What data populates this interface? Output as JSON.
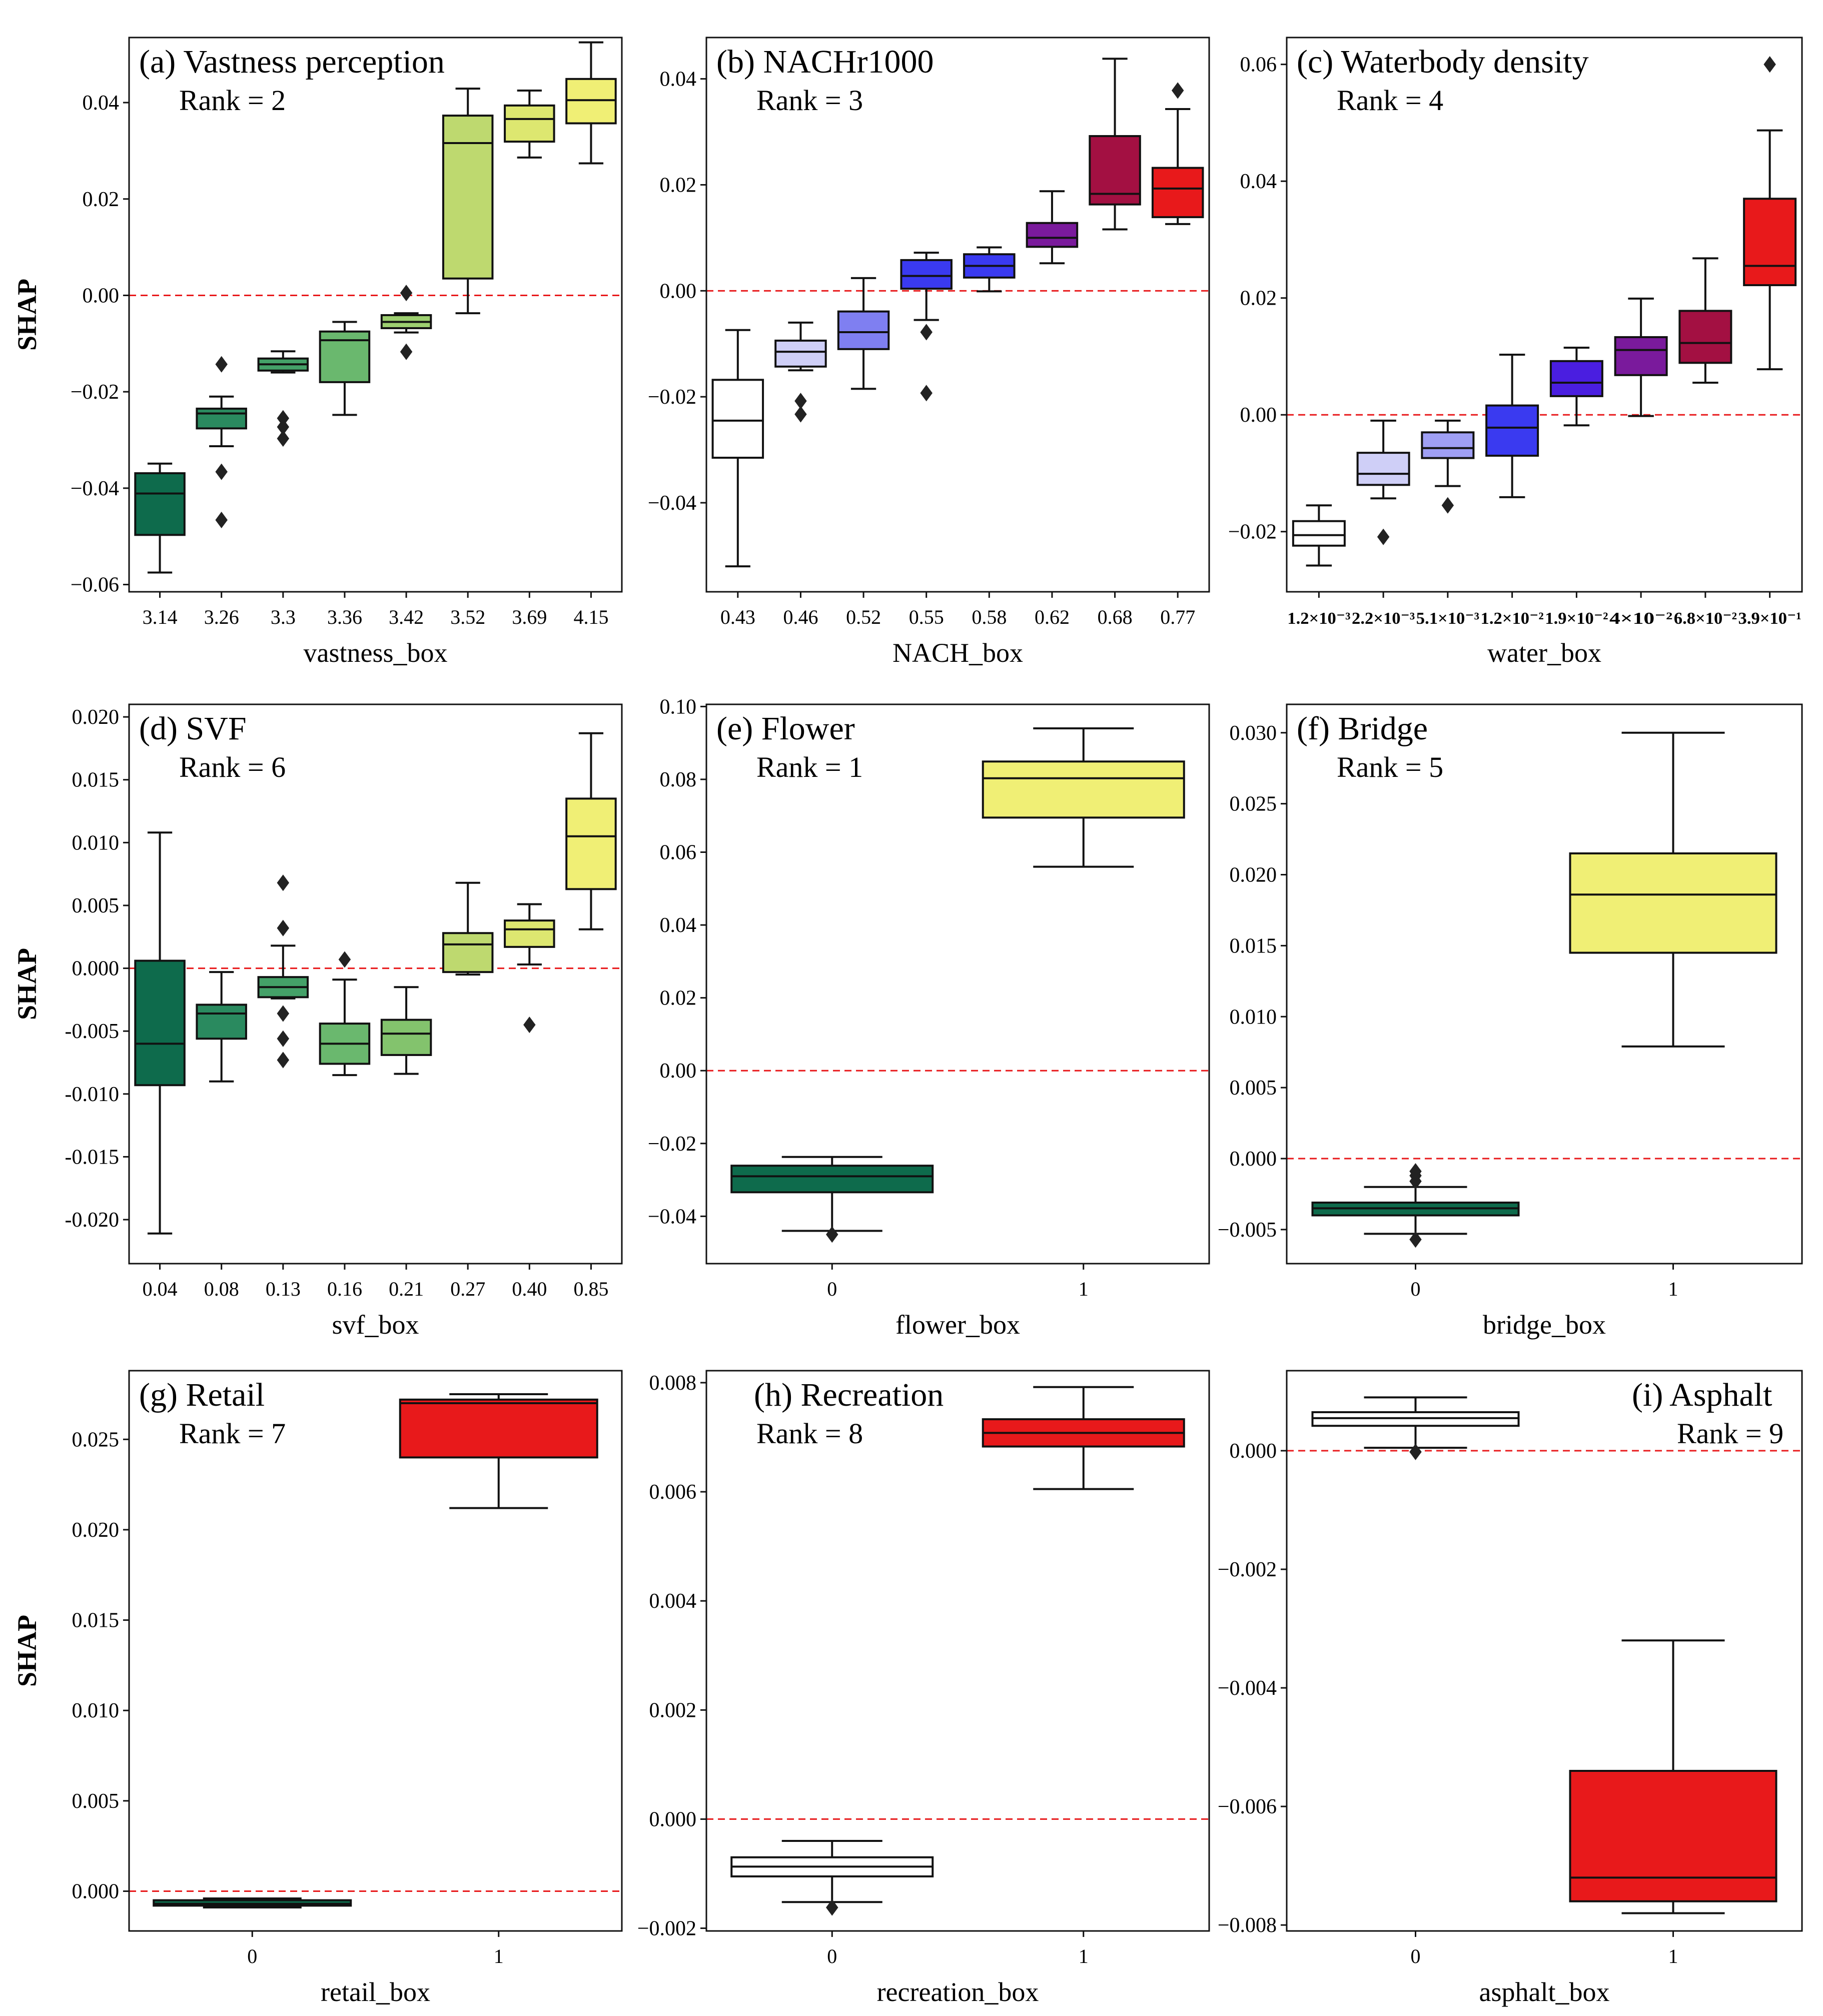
{
  "chart_data": [
    {
      "type": "box",
      "title": "(a) Vastness perception",
      "rank_text": "Rank = 2",
      "xlabel": "vastness_box",
      "ylabel": "SHAP",
      "ylim": [
        -0.0615,
        0.0535
      ],
      "yticks": [
        -0.06,
        -0.04,
        -0.02,
        0.0,
        0.02,
        0.04
      ],
      "ytick_labels": [
        "−0.06",
        "−0.04",
        "−0.02",
        "0.00",
        "0.02",
        "0.04"
      ],
      "reference_line": 0,
      "categories": [
        "3.14",
        "3.26",
        "3.3",
        "3.36",
        "3.42",
        "3.52",
        "3.69",
        "4.15"
      ],
      "boxes": [
        {
          "color": "#0e6b4c",
          "whislo": -0.0575,
          "q1": -0.0497,
          "med": -0.0411,
          "q3": -0.0369,
          "whishi": -0.0349,
          "fliers": []
        },
        {
          "color": "#2a8a5f",
          "whislo": -0.0313,
          "q1": -0.0276,
          "med": -0.0245,
          "q3": -0.0235,
          "whishi": -0.021,
          "fliers": [
            -0.0143,
            -0.0366,
            -0.0466
          ]
        },
        {
          "color": "#44a168",
          "whislo": -0.016,
          "q1": -0.0156,
          "med": -0.0143,
          "q3": -0.0131,
          "whishi": -0.0116,
          "fliers": [
            -0.0255,
            -0.0273,
            -0.0297
          ]
        },
        {
          "color": "#6ab86e",
          "whislo": -0.0248,
          "q1": -0.018,
          "med": -0.0093,
          "q3": -0.0075,
          "whishi": -0.0055,
          "fliers": []
        },
        {
          "color": "#9dcf70",
          "whislo": -0.0077,
          "q1": -0.0068,
          "med": -0.0055,
          "q3": -0.0041,
          "whishi": -0.0037,
          "fliers": [
            0.0005,
            -0.0117
          ]
        },
        {
          "color": "#bed96f",
          "whislo": -0.0037,
          "q1": 0.0035,
          "med": 0.0316,
          "q3": 0.0373,
          "whishi": 0.0429,
          "fliers": []
        },
        {
          "color": "#dde770",
          "whislo": 0.0286,
          "q1": 0.0319,
          "med": 0.0366,
          "q3": 0.0394,
          "whishi": 0.0425,
          "fliers": []
        },
        {
          "color": "#f0ef75",
          "whislo": 0.0274,
          "q1": 0.0357,
          "med": 0.0405,
          "q3": 0.0449,
          "whishi": 0.0525,
          "fliers": []
        }
      ]
    },
    {
      "type": "box",
      "title": "(b) NACHr1000",
      "rank_text": "Rank = 3",
      "xlabel": "NACH_box",
      "ylabel": "",
      "ylim": [
        -0.0568,
        0.0478
      ],
      "yticks": [
        -0.04,
        -0.02,
        0.0,
        0.02,
        0.04
      ],
      "ytick_labels": [
        "−0.04",
        "−0.02",
        "0.00",
        "0.02",
        "0.04"
      ],
      "reference_line": 0,
      "categories": [
        "0.43",
        "0.46",
        "0.52",
        "0.55",
        "0.58",
        "0.62",
        "0.68",
        "0.77"
      ],
      "boxes": [
        {
          "color": "#ffffff",
          "whislo": -0.052,
          "q1": -0.0315,
          "med": -0.0245,
          "q3": -0.0168,
          "whishi": -0.0074,
          "fliers": []
        },
        {
          "color": "#cfcff7",
          "whislo": -0.015,
          "q1": -0.0143,
          "med": -0.0115,
          "q3": -0.0094,
          "whishi": -0.006,
          "fliers": [
            -0.0208,
            -0.0233
          ]
        },
        {
          "color": "#7f7ff1",
          "whislo": -0.0185,
          "q1": -0.011,
          "med": -0.0078,
          "q3": -0.0039,
          "whishi": 0.0024,
          "fliers": []
        },
        {
          "color": "#3a3af0",
          "whislo": -0.0055,
          "q1": 0.0004,
          "med": 0.0028,
          "q3": 0.0058,
          "whishi": 0.0072,
          "fliers": [
            -0.0078,
            -0.0193
          ]
        },
        {
          "color": "#3a3af0",
          "whislo": -0.0001,
          "q1": 0.0025,
          "med": 0.0047,
          "q3": 0.0069,
          "whishi": 0.0082,
          "fliers": []
        },
        {
          "color": "#7a1a9c",
          "whislo": 0.0052,
          "q1": 0.0083,
          "med": 0.01,
          "q3": 0.0128,
          "whishi": 0.0188,
          "fliers": []
        },
        {
          "color": "#a31042",
          "whislo": 0.0116,
          "q1": 0.0163,
          "med": 0.0183,
          "q3": 0.0292,
          "whishi": 0.0438,
          "fliers": []
        },
        {
          "color": "#e8191b",
          "whislo": 0.0126,
          "q1": 0.0139,
          "med": 0.0193,
          "q3": 0.0232,
          "whishi": 0.0343,
          "fliers": [
            0.0378
          ]
        }
      ]
    },
    {
      "type": "box",
      "title": "(c) Waterbody density",
      "rank_text": "Rank = 4",
      "xlabel": "water_box",
      "ylabel": "",
      "ylim": [
        -0.0303,
        0.0646
      ],
      "yticks": [
        -0.02,
        0.0,
        0.02,
        0.04,
        0.06
      ],
      "ytick_labels": [
        "−0.02",
        "0.00",
        "0.02",
        "0.04",
        "0.06"
      ],
      "reference_line": 0,
      "categories": [
        "1.2×10⁻³",
        "2.2×10⁻³",
        "5.1×10⁻³",
        "1.2×10⁻²",
        "1.9×10⁻²",
        "4×10⁻²",
        "6.8×10⁻²",
        "3.9×10⁻¹"
      ],
      "boxes": [
        {
          "color": "#ffffff",
          "whislo": -0.0258,
          "q1": -0.0224,
          "med": -0.0206,
          "q3": -0.0182,
          "whishi": -0.0155,
          "fliers": []
        },
        {
          "color": "#cfcff7",
          "whislo": -0.0143,
          "q1": -0.012,
          "med": -0.0101,
          "q3": -0.0065,
          "whishi": -0.001,
          "fliers": [
            -0.0209
          ]
        },
        {
          "color": "#9f9ff4",
          "whislo": -0.0122,
          "q1": -0.0074,
          "med": -0.0057,
          "q3": -0.003,
          "whishi": -0.001,
          "fliers": [
            -0.0155
          ]
        },
        {
          "color": "#3a3af0",
          "whislo": -0.0141,
          "q1": -0.007,
          "med": -0.0022,
          "q3": 0.0016,
          "whishi": 0.0103,
          "fliers": []
        },
        {
          "color": "#4a1ee0",
          "whislo": -0.0018,
          "q1": 0.0032,
          "med": 0.0055,
          "q3": 0.0092,
          "whishi": 0.0115,
          "fliers": []
        },
        {
          "color": "#7a1a9c",
          "whislo": -0.0002,
          "q1": 0.0068,
          "med": 0.0111,
          "q3": 0.0133,
          "whishi": 0.0199,
          "fliers": []
        },
        {
          "color": "#a31042",
          "whislo": 0.0055,
          "q1": 0.0089,
          "med": 0.0123,
          "q3": 0.0178,
          "whishi": 0.0268,
          "fliers": []
        },
        {
          "color": "#e8191b",
          "whislo": 0.0078,
          "q1": 0.0222,
          "med": 0.0255,
          "q3": 0.037,
          "whishi": 0.0487,
          "fliers": [
            0.06
          ]
        }
      ]
    },
    {
      "type": "box",
      "title": "(d) SVF",
      "rank_text": "Rank = 6",
      "xlabel": "svf_box",
      "ylabel": "SHAP",
      "ylim": [
        -0.0235,
        0.021
      ],
      "yticks": [
        -0.02,
        -0.015,
        -0.01,
        -0.005,
        0.0,
        0.005,
        0.01,
        0.015,
        0.02
      ],
      "ytick_labels": [
        "-0.020",
        "-0.015",
        "-0.010",
        "-0.005",
        "0.000",
        "0.005",
        "0.010",
        "0.015",
        "0.020"
      ],
      "reference_line": 0,
      "categories": [
        "0.04",
        "0.08",
        "0.13",
        "0.16",
        "0.21",
        "0.27",
        "0.40",
        "0.85"
      ],
      "boxes": [
        {
          "color": "#0e6b4c",
          "whislo": -0.0211,
          "q1": -0.0093,
          "med": -0.006,
          "q3": 0.0006,
          "whishi": 0.0108,
          "fliers": []
        },
        {
          "color": "#2a8a5f",
          "whislo": -0.009,
          "q1": -0.0056,
          "med": -0.0036,
          "q3": -0.0029,
          "whishi": -0.0003,
          "fliers": []
        },
        {
          "color": "#44a168",
          "whislo": -0.0024,
          "q1": -0.0023,
          "med": -0.0015,
          "q3": -0.0007,
          "whishi": 0.0018,
          "fliers": [
            0.0068,
            0.0032,
            -0.0036,
            -0.0056,
            -0.0073
          ]
        },
        {
          "color": "#6ab86e",
          "whislo": -0.0085,
          "q1": -0.0076,
          "med": -0.006,
          "q3": -0.0044,
          "whishi": -0.0009,
          "fliers": [
            0.0007
          ]
        },
        {
          "color": "#83c36d",
          "whislo": -0.0084,
          "q1": -0.0069,
          "med": -0.0052,
          "q3": -0.0041,
          "whishi": -0.0015,
          "fliers": []
        },
        {
          "color": "#bed96f",
          "whislo": -0.0005,
          "q1": -0.0003,
          "med": 0.0019,
          "q3": 0.0028,
          "whishi": 0.0068,
          "fliers": []
        },
        {
          "color": "#dde770",
          "whislo": 0.0003,
          "q1": 0.0017,
          "med": 0.0031,
          "q3": 0.0038,
          "whishi": 0.0051,
          "fliers": [
            -0.0045
          ]
        },
        {
          "color": "#f0ef75",
          "whislo": 0.0031,
          "q1": 0.0063,
          "med": 0.0105,
          "q3": 0.0135,
          "whishi": 0.0187,
          "fliers": []
        }
      ]
    },
    {
      "type": "box",
      "title": "(e) Flower",
      "rank_text": "Rank = 1",
      "xlabel": "flower_box",
      "ylabel": "",
      "ylim": [
        -0.053,
        0.1006
      ],
      "yticks": [
        -0.04,
        -0.02,
        0.0,
        0.02,
        0.04,
        0.06,
        0.08,
        0.1
      ],
      "ytick_labels": [
        "−0.04",
        "−0.02",
        "0.00",
        "0.02",
        "0.04",
        "0.06",
        "0.08",
        "0.10"
      ],
      "reference_line": 0,
      "categories": [
        "0",
        "1"
      ],
      "boxes": [
        {
          "color": "#0e6b4c",
          "whislo": -0.044,
          "q1": -0.0334,
          "med": -0.029,
          "q3": -0.0261,
          "whishi": -0.0237,
          "fliers": [
            -0.045
          ]
        },
        {
          "color": "#f0ef75",
          "whislo": 0.056,
          "q1": 0.0695,
          "med": 0.0803,
          "q3": 0.0849,
          "whishi": 0.094,
          "fliers": []
        }
      ]
    },
    {
      "type": "box",
      "title": "(f) Bridge",
      "rank_text": "Rank = 5",
      "xlabel": "bridge_box",
      "ylabel": "",
      "ylim": [
        -0.0074,
        0.032
      ],
      "yticks": [
        -0.005,
        0.0,
        0.005,
        0.01,
        0.015,
        0.02,
        0.025,
        0.03
      ],
      "ytick_labels": [
        "−0.005",
        "0.000",
        "0.005",
        "0.010",
        "0.015",
        "0.020",
        "0.025",
        "0.030"
      ],
      "reference_line": 0,
      "categories": [
        "0",
        "1"
      ],
      "boxes": [
        {
          "color": "#0e6b4c",
          "whislo": -0.0053,
          "q1": -0.004,
          "med": -0.0035,
          "q3": -0.0031,
          "whishi": -0.002,
          "fliers": [
            -0.0009,
            -0.0012,
            -0.0016,
            -0.0057
          ]
        },
        {
          "color": "#f0ef75",
          "whislo": 0.0079,
          "q1": 0.0145,
          "med": 0.0186,
          "q3": 0.0215,
          "whishi": 0.03,
          "fliers": []
        }
      ]
    },
    {
      "type": "box",
      "title": "(g) Retail",
      "rank_text": "Rank = 7",
      "xlabel": "retail_box",
      "ylabel": "SHAP",
      "ylim": [
        -0.0022,
        0.0288
      ],
      "yticks": [
        0.0,
        0.005,
        0.01,
        0.015,
        0.02,
        0.025
      ],
      "ytick_labels": [
        "0.000",
        "0.005",
        "0.010",
        "0.015",
        "0.020",
        "0.025"
      ],
      "reference_line": 0,
      "categories": [
        "0",
        "1"
      ],
      "boxes": [
        {
          "color": "#0e6b4c",
          "whislo": -0.0009,
          "q1": -0.0008,
          "med": -0.0007,
          "q3": -0.0005,
          "whishi": -0.0004,
          "fliers": []
        },
        {
          "color": "#e8191b",
          "whislo": 0.0212,
          "q1": 0.024,
          "med": 0.027,
          "q3": 0.0272,
          "whishi": 0.0275,
          "fliers": []
        }
      ]
    },
    {
      "type": "box",
      "title": "(h) Recreation",
      "rank_text": "Rank = 8",
      "xlabel": "recreation_box",
      "ylabel": "",
      "ylim": [
        -0.00205,
        0.00822
      ],
      "yticks": [
        -0.002,
        0.0,
        0.002,
        0.004,
        0.006,
        0.008
      ],
      "ytick_labels": [
        "−0.002",
        "0.000",
        "0.002",
        "0.004",
        "0.006",
        "0.008"
      ],
      "reference_line": 0,
      "categories": [
        "0",
        "1"
      ],
      "boxes": [
        {
          "color": "#ffffff",
          "whislo": -0.00152,
          "q1": -0.00105,
          "med": -0.00087,
          "q3": -0.0007,
          "whishi": -0.0004,
          "fliers": [
            -0.00162
          ]
        },
        {
          "color": "#e8191b",
          "whislo": 0.00605,
          "q1": 0.00683,
          "med": 0.00708,
          "q3": 0.00733,
          "whishi": 0.00792,
          "fliers": []
        }
      ]
    },
    {
      "type": "box",
      "title": "(i) Asphalt",
      "rank_text": "Rank = 9",
      "xlabel": "asphalt_box",
      "ylabel": "",
      "ylim": [
        -0.0081,
        0.00135
      ],
      "yticks": [
        -0.008,
        -0.006,
        -0.004,
        -0.002,
        0.0
      ],
      "ytick_labels": [
        "−0.008",
        "−0.006",
        "−0.004",
        "−0.002",
        "0.000"
      ],
      "reference_line": 0,
      "categories": [
        "0",
        "1"
      ],
      "boxes": [
        {
          "color": "#ffffff",
          "whislo": 5e-05,
          "q1": 0.00042,
          "med": 0.00055,
          "q3": 0.00065,
          "whishi": 0.0009,
          "fliers": [
            -2e-05
          ]
        },
        {
          "color": "#e8191b",
          "whislo": -0.0078,
          "q1": -0.0076,
          "med": -0.0072,
          "q3": -0.0054,
          "whishi": -0.0032,
          "fliers": []
        }
      ]
    }
  ]
}
